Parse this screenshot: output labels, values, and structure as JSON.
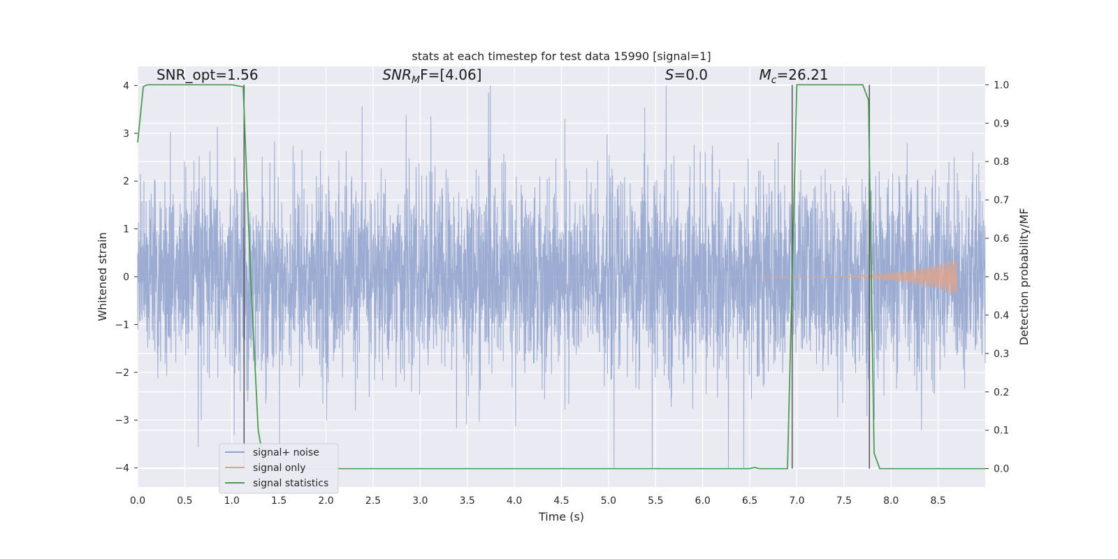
{
  "chart_data": {
    "type": "line",
    "title": "stats at each timestep for test data 15990 [signal=1]",
    "xlabel": "Time (s)",
    "ylabel": "Whitened strain",
    "y2label": "Detection probability/MF",
    "xlim": [
      0.0,
      9.0
    ],
    "ylim": [
      -4.4,
      4.4
    ],
    "y2lim": [
      -0.048,
      1.048
    ],
    "x_ticks": [
      0.0,
      0.5,
      1.0,
      1.5,
      2.0,
      2.5,
      3.0,
      3.5,
      4.0,
      4.5,
      5.0,
      5.5,
      6.0,
      6.5,
      7.0,
      7.5,
      8.0,
      8.5
    ],
    "x_tick_labels": [
      "0.0",
      "0.5",
      "1.0",
      "1.5",
      "2.0",
      "2.5",
      "3.0",
      "3.5",
      "4.0",
      "4.5",
      "5.0",
      "5.5",
      "6.0",
      "6.5",
      "7.0",
      "7.5",
      "8.0",
      "8.5"
    ],
    "y_ticks": [
      -4,
      -3,
      -2,
      -1,
      0,
      1,
      2,
      3,
      4
    ],
    "y_tick_labels": [
      "−4",
      "−3",
      "−2",
      "−1",
      "0",
      "1",
      "2",
      "3",
      "4"
    ],
    "y2_ticks": [
      0.0,
      0.1,
      0.2,
      0.3,
      0.4,
      0.5,
      0.6,
      0.7,
      0.8,
      0.9,
      1.0
    ],
    "y2_tick_labels": [
      "0.0",
      "0.1",
      "0.2",
      "0.3",
      "0.4",
      "0.5",
      "0.6",
      "0.7",
      "0.8",
      "0.9",
      "1.0"
    ],
    "grid": true,
    "legend_position": "bottom-left",
    "annotations": [
      {
        "text": "SNR_opt=1.56",
        "x": 0.2,
        "y": 4.12
      },
      {
        "text": "SNR",
        "sub": "M",
        "tail": "F=[4.06]",
        "italic": true,
        "x": 2.6,
        "y": 4.12
      },
      {
        "text": "S",
        "tail": "=0.0",
        "italic": true,
        "x": 5.6,
        "y": 4.12
      },
      {
        "text": "M",
        "sub": "c",
        "tail": "=26.21",
        "italic": true,
        "x": 6.6,
        "y": 4.12
      }
    ],
    "series": [
      {
        "name": "signal+ noise",
        "color": "#8da0cb",
        "axis": "y",
        "description": "dense whitened strain noise, roughly within [-2.5, 3.5] with spikes",
        "x_range": [
          0.0,
          9.0
        ],
        "peak": 4.0,
        "trough": -4.0
      },
      {
        "name": "signal only",
        "color": "#e0a48a",
        "axis": "y",
        "chirp_start": 6.6,
        "chirp_end": 8.7,
        "chirp_peak_amplitude": 0.38
      },
      {
        "name": "signal statistics",
        "color": "#4a9c52",
        "axis": "y2",
        "x": [
          0.0,
          0.06,
          0.1,
          0.2,
          0.5,
          0.8,
          1.0,
          1.12,
          1.2,
          1.28,
          1.35,
          1.5,
          2.0,
          3.0,
          4.0,
          5.0,
          6.0,
          6.5,
          6.55,
          6.6,
          6.9,
          6.95,
          7.0,
          7.3,
          7.5,
          7.7,
          7.76,
          7.82,
          7.88,
          8.0,
          8.5,
          9.0
        ],
        "values": [
          0.85,
          0.995,
          1.0,
          1.0,
          1.0,
          1.0,
          1.0,
          0.995,
          0.5,
          0.1,
          0.0,
          0.0,
          0.0,
          0.0,
          0.0,
          0.0,
          0.0,
          0.0,
          0.003,
          0.0,
          0.0,
          0.5,
          1.0,
          1.0,
          1.0,
          1.0,
          0.96,
          0.04,
          0.0,
          0.0,
          0.0,
          0.0
        ]
      }
    ],
    "vertical_lines": [
      {
        "x": 1.13,
        "y2_from": 0.0,
        "y2_to": 1.0,
        "color": "#555555"
      },
      {
        "x": 6.95,
        "y2_from": 0.0,
        "y2_to": 1.0,
        "color": "#555555"
      },
      {
        "x": 7.77,
        "y2_from": 0.0,
        "y2_to": 1.0,
        "color": "#555555"
      }
    ],
    "colors": {
      "background": "#eaeaf2",
      "grid": "#ffffff"
    }
  }
}
